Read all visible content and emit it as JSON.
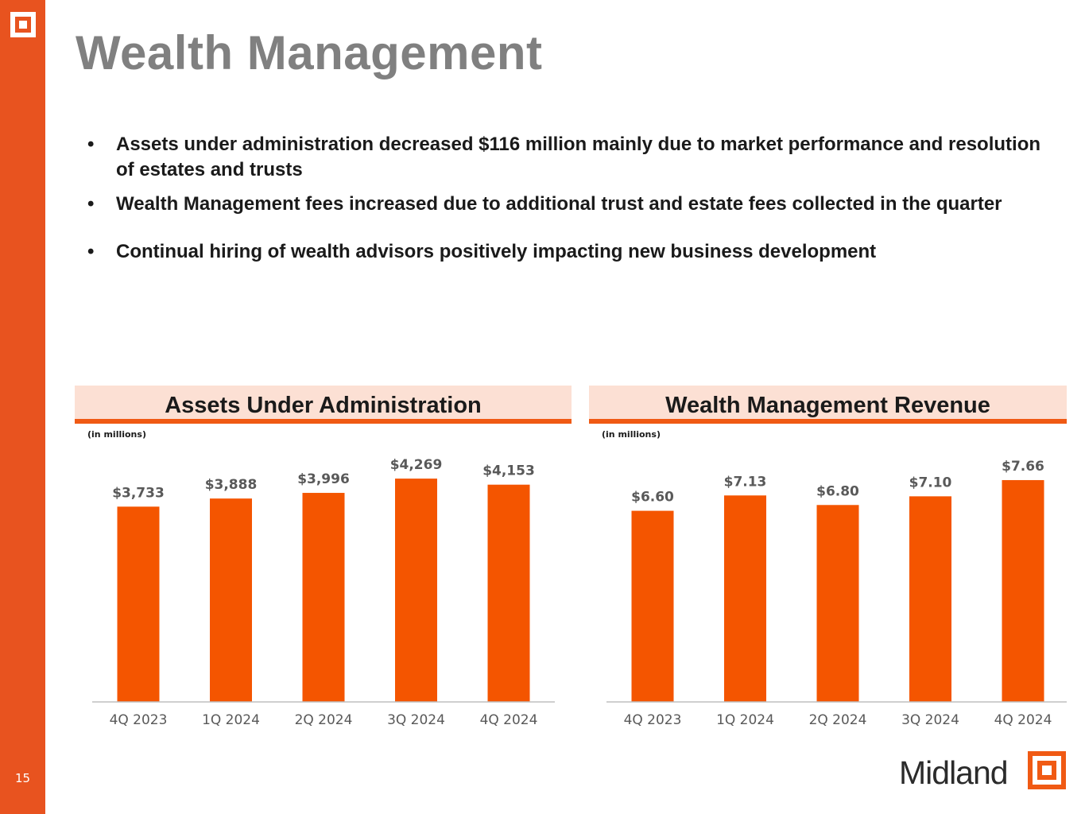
{
  "page": {
    "title": "Wealth Management",
    "page_number": "15"
  },
  "bullets": [
    "Assets under administration decreased $116 million mainly due to market performance and resolution of estates and trusts",
    "Wealth Management fees increased due to additional trust and estate fees collected in the quarter",
    "Continual hiring of wealth advisors positively impacting new business development"
  ],
  "brand": {
    "name": "Midland",
    "accent": "#e8531f",
    "bar_color": "#f45500",
    "header_bg": "#fce0d4"
  },
  "chart_data": [
    {
      "type": "bar",
      "title": "Assets Under Administration",
      "unit_note": "(in millions)",
      "categories": [
        "4Q 2023",
        "1Q 2024",
        "2Q 2024",
        "3Q 2024",
        "4Q 2024"
      ],
      "values": [
        3733,
        3888,
        3996,
        4269,
        4153
      ],
      "labels": [
        "$3,733",
        "$3,888",
        "$3,996",
        "$4,269",
        "$4,153"
      ],
      "ylim": [
        0,
        4650
      ],
      "xlabel": "",
      "ylabel": ""
    },
    {
      "type": "bar",
      "title": "Wealth Management Revenue",
      "unit_note": "(in millions)",
      "categories": [
        "4Q 2023",
        "1Q 2024",
        "2Q 2024",
        "3Q 2024",
        "4Q 2024"
      ],
      "values": [
        6.6,
        7.13,
        6.8,
        7.1,
        7.66
      ],
      "labels": [
        "$6.60",
        "$7.13",
        "$6.80",
        "$7.10",
        "$7.66"
      ],
      "ylim": [
        0,
        8.4
      ],
      "xlabel": "",
      "ylabel": ""
    }
  ]
}
